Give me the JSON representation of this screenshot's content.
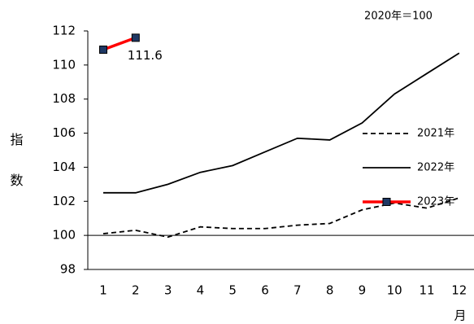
{
  "chart_data": {
    "type": "line",
    "note": "2020年＝100",
    "y_label": "指数",
    "x_label": "月",
    "categories": [
      "1",
      "2",
      "3",
      "4",
      "5",
      "6",
      "7",
      "8",
      "9",
      "10",
      "11",
      "12"
    ],
    "series": [
      {
        "name": "2021年",
        "color": "#000000",
        "dash": true,
        "values": [
          100.1,
          100.3,
          99.9,
          100.5,
          100.4,
          100.4,
          100.6,
          100.7,
          101.5,
          101.9,
          101.6,
          102.2
        ]
      },
      {
        "name": "2022年",
        "color": "#000000",
        "dash": false,
        "values": [
          102.5,
          102.5,
          103.0,
          103.7,
          104.1,
          104.9,
          105.7,
          105.6,
          106.6,
          108.3,
          109.5,
          110.7
        ]
      },
      {
        "name": "2023年",
        "color": "#ff0000",
        "marker_color": "#1f3864",
        "dash": false,
        "values": [
          110.9,
          111.6,
          null,
          null,
          null,
          null,
          null,
          null,
          null,
          null,
          null,
          null
        ]
      }
    ],
    "ylim": [
      98,
      112
    ],
    "yticks": [
      98,
      100,
      102,
      104,
      106,
      108,
      110,
      112
    ],
    "reference_line": 100,
    "legend": "right"
  }
}
